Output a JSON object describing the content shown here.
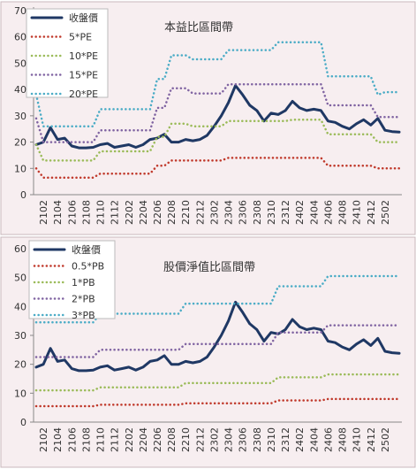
{
  "chart_data": [
    {
      "type": "line",
      "title": "本益比區間帶",
      "categories": [
        null,
        "2102",
        null,
        "2104",
        null,
        "2106",
        null,
        "2108",
        null,
        "2110",
        null,
        "2112",
        null,
        "2202",
        null,
        "2204",
        null,
        "2206",
        null,
        "2208",
        null,
        "2210",
        null,
        "2212",
        null,
        "2302",
        null,
        "2304",
        null,
        "2306",
        null,
        "2308",
        null,
        "2310",
        null,
        "2312",
        null,
        "2402",
        null,
        "2404",
        null,
        "2406",
        null,
        "2408",
        null,
        "2410",
        null,
        "2412",
        null,
        "2502",
        null,
        null
      ],
      "ylim": [
        0,
        70
      ],
      "yticks": [
        0,
        10,
        20,
        30,
        40,
        50,
        60,
        70
      ],
      "grid": false,
      "series": [
        {
          "name": "收盤價",
          "color": "#1f3864",
          "values": [
            19,
            20,
            25.5,
            21,
            21.5,
            18.5,
            17.8,
            17.8,
            18,
            19,
            19.5,
            18,
            18.5,
            19,
            18,
            19,
            21,
            21.5,
            23,
            20,
            20,
            21,
            20.5,
            21,
            22.5,
            26,
            30,
            35,
            41.5,
            38,
            34,
            32,
            28,
            31,
            30.5,
            32,
            35.5,
            33,
            32,
            32.5,
            32,
            28,
            27.5,
            26,
            25,
            27,
            28.5,
            26.5,
            29,
            24.5,
            24,
            23.8
          ]
        },
        {
          "name": "5*PE",
          "color": "#c0392b",
          "values": [
            10,
            6.5,
            6.5,
            6.5,
            6.5,
            6.5,
            6.5,
            6.5,
            6.5,
            8,
            8,
            8,
            8,
            8,
            8,
            8,
            8,
            11,
            11,
            13,
            13,
            13,
            13,
            13,
            13,
            13,
            13,
            14,
            14,
            14,
            14,
            14,
            14,
            14,
            14,
            14,
            14,
            14,
            14,
            14,
            14,
            11,
            11,
            11,
            11,
            11,
            11,
            11,
            10,
            10,
            10,
            10
          ]
        },
        {
          "name": "10*PE",
          "color": "#9bbb59",
          "values": [
            19,
            13,
            13,
            13,
            13,
            13,
            13,
            13,
            13,
            16.5,
            16.5,
            16.5,
            16.5,
            16.5,
            16.5,
            16.5,
            16.5,
            22,
            22,
            27,
            27,
            27,
            26,
            26,
            26,
            26,
            26,
            28,
            28,
            28,
            28,
            28,
            28,
            28,
            28,
            28,
            28.5,
            28.5,
            28.5,
            28.5,
            28.5,
            23,
            23,
            23,
            23,
            23,
            23,
            23,
            20,
            20,
            20,
            20
          ]
        },
        {
          "name": "15*PE",
          "color": "#8064a2",
          "values": [
            29,
            20,
            20,
            20,
            20,
            20,
            20,
            20,
            20,
            24.5,
            24.5,
            24.5,
            24.5,
            24.5,
            24.5,
            24.5,
            24.5,
            33,
            33,
            40.5,
            40.5,
            40.5,
            38.5,
            38.5,
            38.5,
            38.5,
            38.5,
            42,
            42,
            42,
            42,
            42,
            42,
            42,
            42,
            42,
            42,
            42,
            42,
            42,
            42,
            34,
            34,
            34,
            34,
            34,
            34,
            34,
            29.5,
            29.5,
            29.5,
            29.5
          ]
        },
        {
          "name": "20*PE",
          "color": "#4bacc6",
          "values": [
            38,
            26,
            26,
            26,
            26,
            26,
            26,
            26,
            26,
            32.5,
            32.5,
            32.5,
            32.5,
            32.5,
            32.5,
            32.5,
            32.5,
            44,
            44,
            53,
            53,
            53,
            51.5,
            51.5,
            51.5,
            51.5,
            51.5,
            55,
            55,
            55,
            55,
            55,
            55,
            55,
            58,
            58,
            58,
            58,
            58,
            58,
            58,
            45,
            45,
            45,
            45,
            45,
            45,
            45,
            38,
            39,
            39,
            39
          ]
        }
      ]
    },
    {
      "type": "line",
      "title": "股價淨值比區間帶",
      "categories": [
        null,
        "2102",
        null,
        "2104",
        null,
        "2106",
        null,
        "2108",
        null,
        "2110",
        null,
        "2112",
        null,
        "2202",
        null,
        "2204",
        null,
        "2206",
        null,
        "2208",
        null,
        "2210",
        null,
        "2212",
        null,
        "2302",
        null,
        "2304",
        null,
        "2306",
        null,
        "2308",
        null,
        "2310",
        null,
        "2312",
        null,
        "2402",
        null,
        "2404",
        null,
        "2406",
        null,
        "2408",
        null,
        "2410",
        null,
        "2412",
        null,
        "2502",
        null,
        null
      ],
      "ylim": [
        0,
        60
      ],
      "yticks": [
        0,
        10,
        20,
        30,
        40,
        50,
        60
      ],
      "grid": false,
      "series": [
        {
          "name": "收盤價",
          "color": "#1f3864",
          "values": [
            19,
            20,
            25.5,
            21,
            21.5,
            18.5,
            17.8,
            17.8,
            18,
            19,
            19.5,
            18,
            18.5,
            19,
            18,
            19,
            21,
            21.5,
            23,
            20,
            20,
            21,
            20.5,
            21,
            22.5,
            26,
            30,
            35,
            41.5,
            38,
            34,
            32,
            28,
            31,
            30.5,
            32,
            35.5,
            33,
            32,
            32.5,
            32,
            28,
            27.5,
            26,
            25,
            27,
            28.5,
            26.5,
            29,
            24.5,
            24,
            23.8
          ]
        },
        {
          "name": "0.5*PB",
          "color": "#c0392b",
          "values": [
            5.5,
            5.5,
            5.5,
            5.5,
            5.5,
            5.5,
            5.5,
            5.5,
            5.5,
            6,
            6,
            6,
            6,
            6,
            6,
            6,
            6,
            6,
            6,
            6,
            6,
            6.5,
            6.5,
            6.5,
            6.5,
            6.5,
            6.5,
            6.5,
            6.5,
            6.5,
            6.5,
            6.5,
            6.5,
            6.5,
            7.5,
            7.5,
            7.5,
            7.5,
            7.5,
            7.5,
            7.5,
            8,
            8,
            8,
            8,
            8,
            8,
            8,
            8,
            8,
            8,
            8
          ]
        },
        {
          "name": "1*PB",
          "color": "#9bbb59",
          "values": [
            11,
            11,
            11,
            11,
            11,
            11,
            11,
            11,
            11,
            12,
            12,
            12,
            12,
            12,
            12,
            12,
            12,
            12,
            12,
            12,
            12,
            13.5,
            13.5,
            13.5,
            13.5,
            13.5,
            13.5,
            13.5,
            13.5,
            13.5,
            13.5,
            13.5,
            13.5,
            13.5,
            15.5,
            15.5,
            15.5,
            15.5,
            15.5,
            15.5,
            15.5,
            16.5,
            16.5,
            16.5,
            16.5,
            16.5,
            16.5,
            16.5,
            16.5,
            16.5,
            16.5,
            16.5
          ]
        },
        {
          "name": "2*PB",
          "color": "#8064a2",
          "values": [
            22.5,
            22.5,
            22.5,
            22.5,
            22.5,
            22.5,
            22.5,
            22.5,
            22.5,
            25,
            25,
            25,
            25,
            25,
            25,
            25,
            25,
            25,
            25,
            25,
            25,
            27,
            27,
            27,
            27,
            27,
            27,
            27,
            27,
            27,
            27,
            27,
            27,
            27,
            31,
            31,
            31,
            31,
            31,
            31,
            31,
            33.5,
            33.5,
            33.5,
            33.5,
            33.5,
            33.5,
            33.5,
            33.5,
            33.5,
            33.5,
            33.5
          ]
        },
        {
          "name": "3*PB",
          "color": "#4bacc6",
          "values": [
            34.5,
            34.5,
            34.5,
            34.5,
            34.5,
            34.5,
            34.5,
            34.5,
            34.5,
            37.5,
            37.5,
            37.5,
            37.5,
            37.5,
            37.5,
            37.5,
            37.5,
            37.5,
            37.5,
            37.5,
            37.5,
            41,
            41,
            41,
            41,
            41,
            41,
            41,
            41,
            41,
            41,
            41,
            41,
            41,
            47,
            47,
            47,
            47,
            47,
            47,
            47,
            50.5,
            50.5,
            50.5,
            50.5,
            50.5,
            50.5,
            50.5,
            50.5,
            50.5,
            50.5,
            50.5
          ]
        }
      ]
    }
  ]
}
